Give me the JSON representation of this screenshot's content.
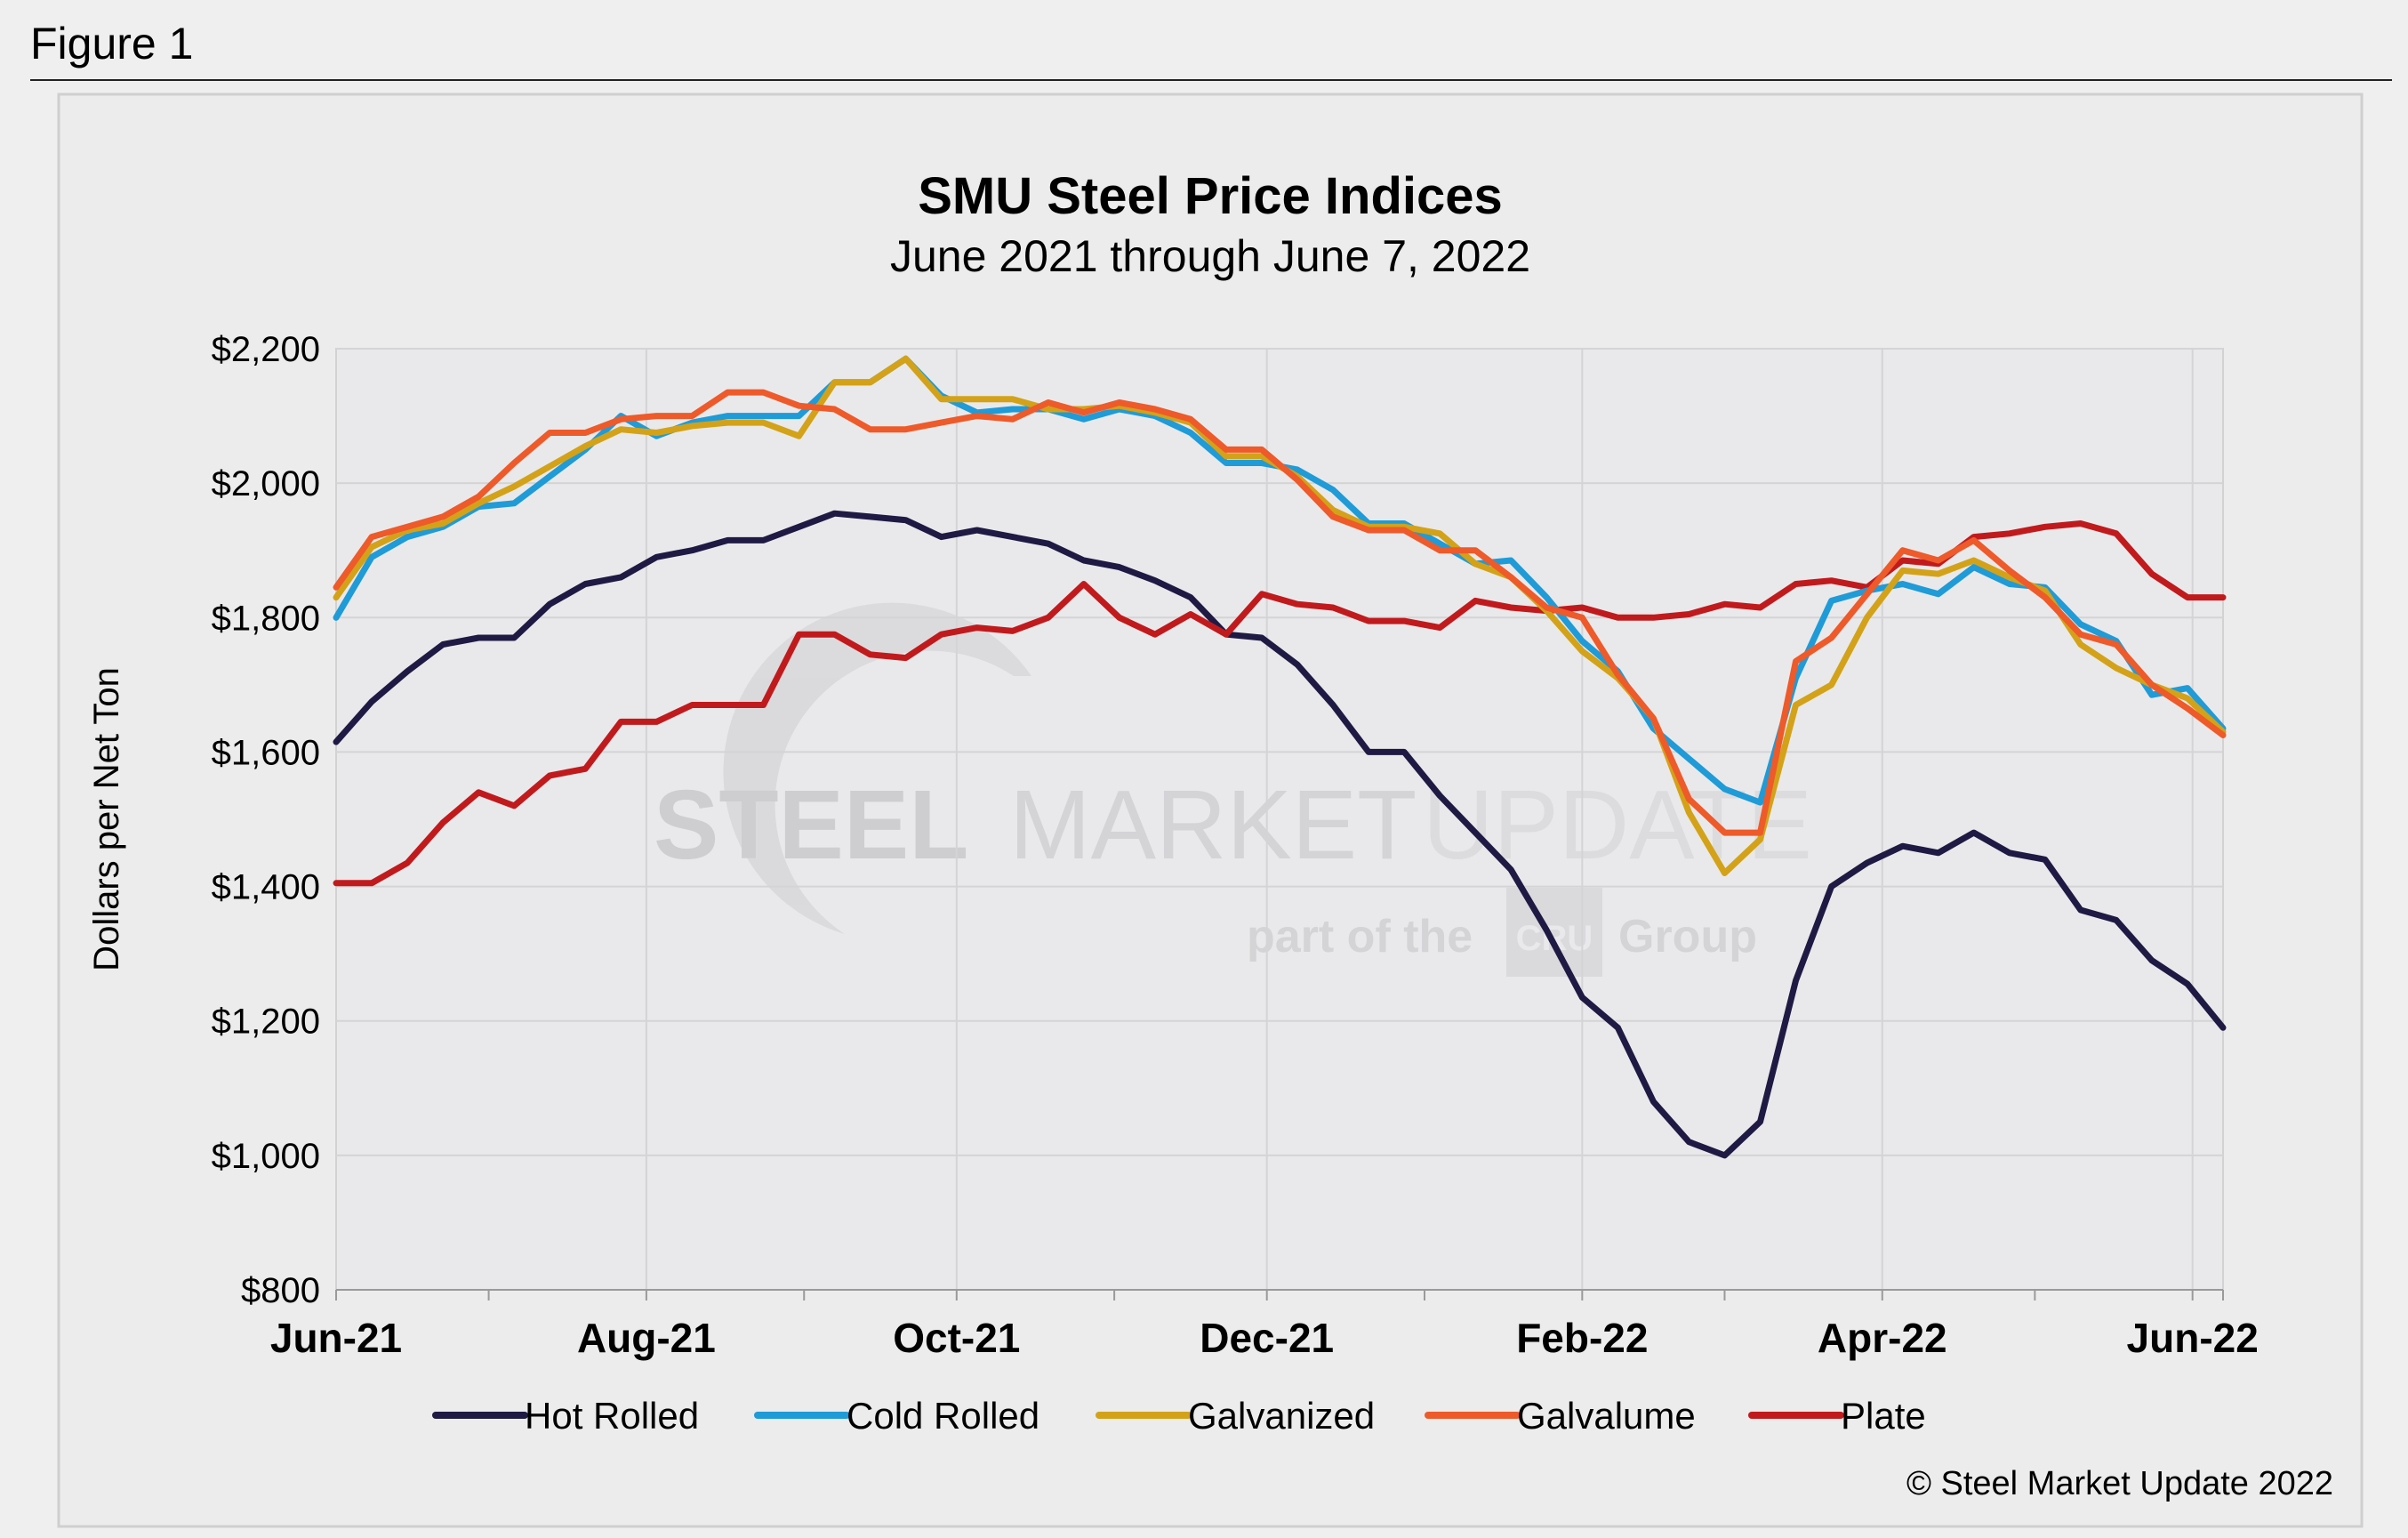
{
  "figure_label": "Figure 1",
  "copyright": "© Steel Market Update 2022",
  "watermark": {
    "steel": "STEEL",
    "market": "MARKET",
    "update": "UPDATE",
    "part_of": "part of the",
    "mark": "CRU",
    "group": "Group"
  },
  "chart_data": {
    "type": "line",
    "title": "SMU Steel Price Indices",
    "subtitle": "June 2021 through June 7, 2022",
    "ylabel": "Dollars per Net Ton",
    "ylim": [
      800,
      2200
    ],
    "yticks": [
      800,
      1000,
      1200,
      1400,
      1600,
      1800,
      2000,
      2200
    ],
    "ytick_labels": [
      "$800",
      "$1,000",
      "$1,200",
      "$1,400",
      "$1,600",
      "$1,800",
      "$2,000",
      "$2,200"
    ],
    "x_range": [
      "2021-06-01",
      "2022-06-07"
    ],
    "x_month_ticks": [
      "2021-06-01",
      "2021-07-01",
      "2021-08-01",
      "2021-09-01",
      "2021-10-01",
      "2021-11-01",
      "2021-12-01",
      "2022-01-01",
      "2022-02-01",
      "2022-03-01",
      "2022-04-01",
      "2022-05-01",
      "2022-06-01"
    ],
    "x_labels": [
      {
        "date": "2021-06-01",
        "label": "Jun-21"
      },
      {
        "date": "2021-08-01",
        "label": "Aug-21"
      },
      {
        "date": "2021-10-01",
        "label": "Oct-21"
      },
      {
        "date": "2021-12-01",
        "label": "Dec-21"
      },
      {
        "date": "2022-02-01",
        "label": "Feb-22"
      },
      {
        "date": "2022-04-01",
        "label": "Apr-22"
      },
      {
        "date": "2022-06-01",
        "label": "Jun-22"
      }
    ],
    "grid": true,
    "legend_position": "bottom",
    "x": [
      "2021-06-01",
      "2021-06-08",
      "2021-06-15",
      "2021-06-22",
      "2021-06-29",
      "2021-07-06",
      "2021-07-13",
      "2021-07-20",
      "2021-07-27",
      "2021-08-03",
      "2021-08-10",
      "2021-08-17",
      "2021-08-24",
      "2021-08-31",
      "2021-09-07",
      "2021-09-14",
      "2021-09-21",
      "2021-09-28",
      "2021-10-05",
      "2021-10-12",
      "2021-10-19",
      "2021-10-26",
      "2021-11-02",
      "2021-11-09",
      "2021-11-16",
      "2021-11-23",
      "2021-11-30",
      "2021-12-07",
      "2021-12-14",
      "2021-12-21",
      "2021-12-28",
      "2022-01-04",
      "2022-01-11",
      "2022-01-18",
      "2022-01-25",
      "2022-02-01",
      "2022-02-08",
      "2022-02-15",
      "2022-02-22",
      "2022-03-01",
      "2022-03-08",
      "2022-03-15",
      "2022-03-22",
      "2022-03-29",
      "2022-04-05",
      "2022-04-12",
      "2022-04-19",
      "2022-04-26",
      "2022-05-03",
      "2022-05-10",
      "2022-05-17",
      "2022-05-24",
      "2022-05-31",
      "2022-06-07"
    ],
    "series": [
      {
        "name": "Hot Rolled",
        "color": "#1e1a44",
        "values": [
          1615,
          1675,
          1720,
          1760,
          1770,
          1770,
          1820,
          1850,
          1860,
          1890,
          1900,
          1915,
          1915,
          1935,
          1955,
          1950,
          1945,
          1920,
          1930,
          1920,
          1910,
          1885,
          1875,
          1855,
          1830,
          1775,
          1770,
          1730,
          1670,
          1600,
          1600,
          1535,
          1480,
          1425,
          1335,
          1235,
          1190,
          1080,
          1020,
          1000,
          1050,
          1260,
          1400,
          1435,
          1460,
          1450,
          1480,
          1450,
          1440,
          1365,
          1350,
          1290,
          1255,
          1190
        ]
      },
      {
        "name": "Cold Rolled",
        "color": "#1f9bd7",
        "values": [
          1800,
          1890,
          1920,
          1935,
          1965,
          1970,
          2010,
          2050,
          2100,
          2070,
          2090,
          2100,
          2100,
          2100,
          2150,
          2150,
          2185,
          2130,
          2105,
          2110,
          2110,
          2095,
          2110,
          2100,
          2075,
          2030,
          2030,
          2020,
          1990,
          1940,
          1940,
          1910,
          1880,
          1885,
          1830,
          1765,
          1720,
          1635,
          1590,
          1545,
          1525,
          1710,
          1825,
          1840,
          1850,
          1835,
          1875,
          1850,
          1845,
          1790,
          1765,
          1685,
          1695,
          1635
        ]
      },
      {
        "name": "Galvanized",
        "color": "#d3a218",
        "values": [
          1830,
          1905,
          1930,
          1940,
          1970,
          1995,
          2025,
          2055,
          2080,
          2075,
          2085,
          2090,
          2090,
          2070,
          2150,
          2150,
          2185,
          2125,
          2125,
          2125,
          2110,
          2110,
          2115,
          2105,
          2090,
          2040,
          2040,
          2010,
          1960,
          1935,
          1935,
          1925,
          1880,
          1860,
          1810,
          1750,
          1710,
          1650,
          1510,
          1420,
          1470,
          1670,
          1700,
          1800,
          1870,
          1865,
          1885,
          1860,
          1840,
          1760,
          1725,
          1700,
          1680,
          1630
        ]
      },
      {
        "name": "Galvalume",
        "color": "#ee5a2a",
        "values": [
          1845,
          1920,
          1935,
          1950,
          1980,
          2030,
          2075,
          2075,
          2095,
          2100,
          2100,
          2135,
          2135,
          2115,
          2110,
          2080,
          2080,
          2090,
          2100,
          2095,
          2120,
          2105,
          2120,
          2110,
          2095,
          2050,
          2050,
          2005,
          1950,
          1930,
          1930,
          1900,
          1900,
          1860,
          1815,
          1800,
          1715,
          1650,
          1530,
          1480,
          1480,
          1735,
          1770,
          1835,
          1900,
          1885,
          1915,
          1870,
          1830,
          1775,
          1760,
          1700,
          1665,
          1625
        ]
      },
      {
        "name": "Plate",
        "color": "#c11a1d",
        "values": [
          1405,
          1405,
          1435,
          1495,
          1540,
          1520,
          1565,
          1575,
          1645,
          1645,
          1670,
          1670,
          1670,
          1775,
          1775,
          1745,
          1740,
          1775,
          1785,
          1780,
          1800,
          1850,
          1800,
          1775,
          1805,
          1775,
          1835,
          1820,
          1815,
          1795,
          1795,
          1785,
          1825,
          1815,
          1810,
          1815,
          1800,
          1800,
          1805,
          1820,
          1815,
          1850,
          1855,
          1845,
          1885,
          1880,
          1920,
          1925,
          1935,
          1940,
          1925,
          1865,
          1830,
          1830
        ]
      }
    ]
  }
}
